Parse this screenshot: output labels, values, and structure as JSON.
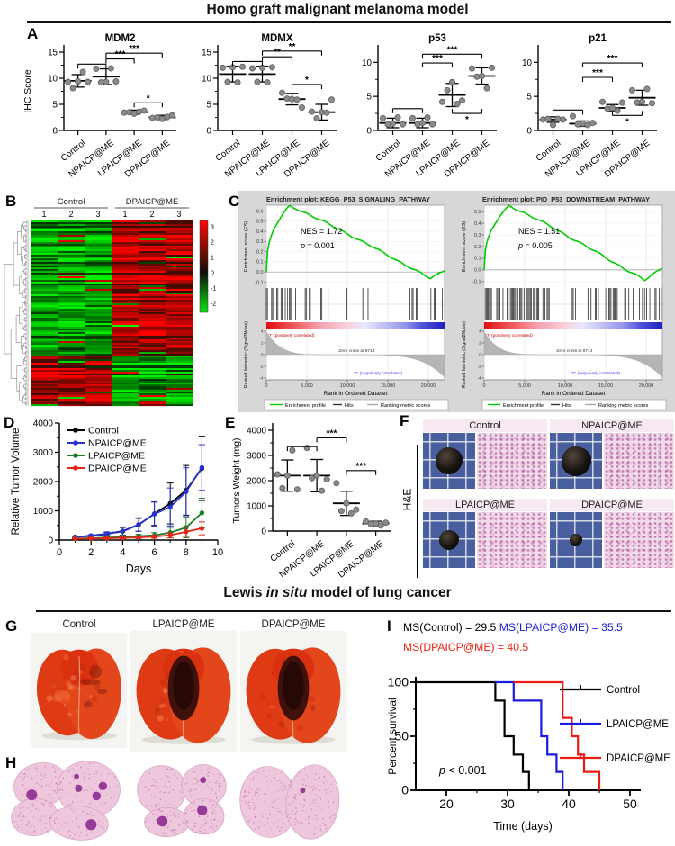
{
  "titles": {
    "top": "Homo graft malignant melanoma model",
    "bottom_pre": "Lewis",
    "bottom_italic": " in situ ",
    "bottom_post": "model of lung cancer"
  },
  "panels": {
    "a": "A",
    "b": "B",
    "c": "C",
    "d": "D",
    "e": "E",
    "f": "F",
    "g": "G",
    "h": "H",
    "i": "I"
  },
  "groups": [
    "Control",
    "NPAICP@ME",
    "LPAICP@ME",
    "DPAICP@ME"
  ],
  "colors": {
    "control_black": "#000000",
    "npaicp_blue": "#2633cf",
    "lpaicp_green": "#1e7d23",
    "dpaicp_red": "#e22718",
    "scatter_point_gray": "#8a8a8a",
    "heatmap_red": "#ee1111",
    "heatmap_green": "#11dd11",
    "gsea_curve_green": "#00cc00",
    "survival_blue": "#1a1ae0",
    "survival_red": "#ea1c12",
    "ms_blue_text": "#2222dd",
    "ms_red_text": "#e82412"
  },
  "panel_f": {
    "side_label": "H&E",
    "cells": [
      {
        "label": "Control",
        "tumor_size": 30
      },
      {
        "label": "NPAICP@ME",
        "tumor_size": 33
      },
      {
        "label": "LPAICP@ME",
        "tumor_size": 22
      },
      {
        "label": "DPAICP@ME",
        "tumor_size": 14
      }
    ]
  },
  "panel_g": {
    "labels": [
      "Control",
      "LPAICP@ME",
      "DPAICP@ME"
    ]
  },
  "survival_header": {
    "ms_control": "MS(Control) = 29.5",
    "ms_lpaicp": "MS(LPAICP@ME) = 35.5",
    "ms_dpaicp": "MS(DPAICP@ME) = 40.5"
  },
  "chart_data": [
    {
      "id": "ihc_mdm2",
      "type": "scatter",
      "title": "MDM2",
      "ylabel": "IHC Score",
      "ylim": [
        0,
        15
      ],
      "yticks": [
        0,
        5,
        10,
        15
      ],
      "categories": [
        "Control",
        "NPAICP@ME",
        "LPAICP@ME",
        "DPAICP@ME"
      ],
      "values": [
        [
          9.3,
          8.1,
          9.4,
          11.2,
          9.3
        ],
        [
          11.8,
          9.2,
          9.3,
          11.9,
          9.4
        ],
        [
          3.4,
          3.5,
          3.2,
          3.6,
          3.8
        ],
        [
          2.4,
          2.5,
          2.2,
          2.6,
          2.9
        ]
      ],
      "means": [
        9.5,
        10.3,
        3.5,
        2.5
      ],
      "errs": [
        1.2,
        1.5,
        0.4,
        0.4
      ],
      "brackets": [
        {
          "a": 0,
          "b": 1,
          "y": 12.7,
          "label": ""
        },
        {
          "a": 1,
          "b": 2,
          "y": 13.7,
          "label": "***"
        },
        {
          "a": 1,
          "b": 3,
          "y": 14.8,
          "label": "***"
        },
        {
          "a": 2,
          "b": 3,
          "y": 5.3,
          "label": "*"
        }
      ]
    },
    {
      "id": "ihc_mdmx",
      "type": "scatter",
      "title": "MDMX",
      "ylim": [
        0,
        15
      ],
      "yticks": [
        0,
        5,
        10,
        15
      ],
      "categories": [
        "Control",
        "NPAICP@ME",
        "LPAICP@ME",
        "DPAICP@ME"
      ],
      "values": [
        [
          12,
          9.3,
          12.1,
          9.2,
          12.2
        ],
        [
          11.9,
          9.3,
          12,
          9.2,
          12.1
        ],
        [
          7.2,
          6.1,
          6,
          5.9,
          4.4
        ],
        [
          3.6,
          2.3,
          3.5,
          3.4,
          5.9
        ]
      ],
      "means": [
        10.8,
        10.8,
        6,
        3.5
      ],
      "errs": [
        1.5,
        1.5,
        1.1,
        1.5
      ],
      "brackets": [
        {
          "a": 0,
          "b": 1,
          "y": 13.2,
          "label": ""
        },
        {
          "a": 1,
          "b": 2,
          "y": 14.1,
          "label": "**"
        },
        {
          "a": 1,
          "b": 3,
          "y": 15.2,
          "label": "**"
        },
        {
          "a": 2,
          "b": 3,
          "y": 8.8,
          "label": "*"
        }
      ]
    },
    {
      "id": "ihc_p53",
      "type": "scatter",
      "title": "p53",
      "ylim": [
        0,
        11.5
      ],
      "yticks": [
        0,
        5,
        10
      ],
      "categories": [
        "Control",
        "NPAICP@ME",
        "LPAICP@ME",
        "DPAICP@ME"
      ],
      "values": [
        [
          1.8,
          0.9,
          1,
          1.9,
          0.9
        ],
        [
          1.8,
          0.9,
          1.1,
          1.9,
          0.9
        ],
        [
          4.2,
          5.9,
          7.1,
          3.9,
          4.4
        ],
        [
          9.1,
          7.9,
          8,
          6.2,
          9.2
        ]
      ],
      "means": [
        1.1,
        1.1,
        5.2,
        8
      ],
      "errs": [
        0.7,
        0.7,
        1.7,
        1.2
      ],
      "brackets": [
        {
          "a": 0,
          "b": 1,
          "y": 3.2,
          "label": ""
        },
        {
          "a": 1,
          "b": 2,
          "y": 9.9,
          "label": "***"
        },
        {
          "a": 1,
          "b": 3,
          "y": 11.2,
          "label": "***"
        },
        {
          "a": 2,
          "b": 3,
          "y": 2.5,
          "label": "*",
          "below": true
        }
      ]
    },
    {
      "id": "ihc_p21",
      "type": "scatter",
      "title": "p21",
      "ylim": [
        0,
        11.5
      ],
      "yticks": [
        0,
        5,
        10
      ],
      "categories": [
        "Control",
        "NPAICP@ME",
        "LPAICP@ME",
        "DPAICP@ME"
      ],
      "values": [
        [
          1.6,
          1.7,
          0.8,
          1.7,
          1.6
        ],
        [
          2.1,
          0.9,
          1,
          0.8,
          1.1
        ],
        [
          4.2,
          3.2,
          3.3,
          2.9,
          4.1
        ],
        [
          5.9,
          4.1,
          4.2,
          6.1,
          4
        ]
      ],
      "means": [
        1.6,
        1,
        3.3,
        4.8
      ],
      "errs": [
        0.4,
        0.4,
        0.5,
        1.1
      ],
      "brackets": [
        {
          "a": 0,
          "b": 1,
          "y": 3,
          "label": ""
        },
        {
          "a": 1,
          "b": 2,
          "y": 7.8,
          "label": "***"
        },
        {
          "a": 1,
          "b": 3,
          "y": 9.9,
          "label": "***"
        },
        {
          "a": 2,
          "b": 3,
          "y": 2.2,
          "label": "*",
          "below": true
        }
      ]
    },
    {
      "id": "tumor_volume",
      "type": "line",
      "xlabel": "Days",
      "ylabel": "Relative Tumor Volume",
      "xlim": [
        0,
        10
      ],
      "xticks": [
        0,
        2,
        4,
        6,
        8,
        10
      ],
      "ylim": [
        0,
        4000
      ],
      "yticks": [
        0,
        1000,
        2000,
        3000,
        4000
      ],
      "x": [
        1,
        2,
        3,
        4,
        5,
        6,
        7,
        8,
        9
      ],
      "series": [
        {
          "name": "Control",
          "color": "#000000",
          "values": [
            110,
            140,
            210,
            300,
            520,
            900,
            1250,
            1700,
            2450
          ],
          "errors": [
            25,
            35,
            60,
            130,
            220,
            400,
            700,
            850,
            1100
          ]
        },
        {
          "name": "NPAICP@ME",
          "color": "#2633cf",
          "values": [
            105,
            150,
            220,
            310,
            530,
            890,
            1130,
            1650,
            2480
          ],
          "errors": [
            25,
            35,
            60,
            140,
            230,
            420,
            650,
            820,
            780
          ]
        },
        {
          "name": "LPAICP@ME",
          "color": "#1e7d23",
          "values": [
            55,
            65,
            85,
            105,
            135,
            165,
            255,
            430,
            930
          ],
          "errors": [
            15,
            20,
            30,
            40,
            60,
            90,
            180,
            350,
            500
          ]
        },
        {
          "name": "DPAICP@ME",
          "color": "#e22718",
          "values": [
            45,
            55,
            62,
            72,
            88,
            115,
            165,
            285,
            400
          ],
          "errors": [
            12,
            15,
            20,
            25,
            35,
            50,
            90,
            160,
            220
          ]
        }
      ]
    },
    {
      "id": "tumor_weight",
      "type": "scatter",
      "ylabel": "Tumors Weight (mg)",
      "ylim": [
        0,
        4000
      ],
      "yticks": [
        0,
        1000,
        2000,
        3000,
        4000
      ],
      "categories": [
        "Control",
        "NPAICP@ME",
        "LPAICP@ME",
        "DPAICP@ME"
      ],
      "values": [
        [
          2250,
          1700,
          2200,
          3200,
          1650
        ],
        [
          3300,
          2100,
          2200,
          1600,
          2050
        ],
        [
          1900,
          800,
          1100,
          700,
          850
        ],
        [
          380,
          280,
          300,
          220,
          330
        ]
      ],
      "means": [
        2200,
        2200,
        1100,
        300
      ],
      "errs": [
        620,
        640,
        480,
        90
      ],
      "brackets": [
        {
          "a": 0,
          "b": 1,
          "y": 3350,
          "label": ""
        },
        {
          "a": 1,
          "b": 2,
          "y": 3700,
          "label": "***"
        },
        {
          "a": 2,
          "b": 3,
          "y": 2400,
          "label": "***"
        }
      ]
    },
    {
      "id": "heatmap",
      "type": "heatmap",
      "col_groups": [
        "Control",
        "DPAICP@ME"
      ],
      "col_numbers": [
        "1",
        "2",
        "3",
        "1",
        "2",
        "3"
      ],
      "colorbar_ticks": [
        3,
        2,
        1,
        0,
        -1,
        -2
      ],
      "value_scale": [
        -2.6,
        3.4
      ],
      "rows": 103,
      "upregulated_in_treatment_fraction": 0.72
    },
    {
      "id": "gsea_kegg",
      "type": "gsea",
      "title": "Enrichment plot: KEGG_P53_SIGNALING_PATHWAY",
      "nes": "NES = 1.72",
      "p_italic": "p",
      "p_rest": " = 0.001",
      "es_yticks": [
        0.6,
        0.5,
        0.4,
        0.3,
        0.2,
        0.1,
        0.0,
        -0.1
      ],
      "es_peak": 0.65,
      "peak_pos": 0.13,
      "es_dip": -0.065,
      "dip_pos": 0.92,
      "ylabel_top": "Enrichment score (ES)",
      "ylabel_bottom": "Ranked list metric (Signal2Noise)",
      "metric_yticks": [
        4,
        2,
        0,
        -2,
        -4
      ],
      "zero_cross": "Zero cross at 8714",
      "zero_cross_pos": 0.396,
      "x_max": 22000,
      "pos_label": "'T' (positively correlated)",
      "neg_label": "'D' (negatively correlated)",
      "xlabel": "Rank in Ordered Dataset",
      "xticks": [
        "0",
        "5,000",
        "10,000",
        "15,000",
        "20,000"
      ],
      "legend": [
        "Enrichment profile",
        "Hits",
        "Ranking metric scores"
      ],
      "hit_bands": [
        [
          0,
          0.14,
          0.5
        ],
        [
          0.14,
          0.34,
          0.18
        ],
        [
          0.34,
          0.6,
          0.05
        ],
        [
          0.6,
          0.82,
          0.13
        ],
        [
          0.82,
          1,
          0.33
        ]
      ],
      "seed": 7
    },
    {
      "id": "gsea_pid",
      "type": "gsea",
      "title": "Enrichment plot: PID_P53_DOWNSTREAM_PATHWAY",
      "nes": "NES = 1.51",
      "p_italic": "p",
      "p_rest": " = 0.005",
      "es_yticks": [
        0.5,
        0.4,
        0.3,
        0.2,
        0.1,
        0.0,
        -0.1
      ],
      "es_peak": 0.55,
      "peak_pos": 0.14,
      "es_dip": -0.09,
      "dip_pos": 0.9,
      "ylabel_top": "Enrichment score (ES)",
      "ylabel_bottom": "Ranked list metric (Signal2Noise)",
      "metric_yticks": [
        4,
        2,
        0,
        -2,
        -4
      ],
      "zero_cross": "Zero cross at 8714",
      "zero_cross_pos": 0.396,
      "x_max": 22000,
      "pos_label": "'T' (positively correlated)",
      "neg_label": "'D' (negatively correlated)",
      "xlabel": "Rank in Ordered Dataset",
      "xticks": [
        "0",
        "5,000",
        "10,000",
        "15,000",
        "20,000"
      ],
      "legend": [
        "Enrichment profile",
        "Hits",
        "Ranking metric scores"
      ],
      "hit_bands": [
        [
          0,
          0.38,
          0.42
        ],
        [
          0.38,
          0.58,
          0.12
        ],
        [
          0.58,
          1,
          0.38
        ]
      ],
      "seed": 13
    },
    {
      "id": "survival",
      "type": "survival",
      "p_italic": "p",
      "p_rest": " < 0.001",
      "xlabel": "Time (days)",
      "ylabel": "Percent survival",
      "xlim": [
        15,
        50
      ],
      "xticks": [
        20,
        30,
        40,
        50
      ],
      "ylim": [
        0,
        100
      ],
      "yticks": [
        0,
        50,
        100
      ],
      "median_survival": {
        "Control": 29.5,
        "LPAICP@ME": 35.5,
        "DPAICP@ME": 40.5
      },
      "series": [
        {
          "name": "Control",
          "color": "#000000",
          "start": 15,
          "drops": [
            [
              28,
              83
            ],
            [
              29.5,
              50
            ],
            [
              31,
              33
            ],
            [
              32.5,
              17
            ],
            [
              33.5,
              0
            ]
          ]
        },
        {
          "name": "LPAICP@ME",
          "color": "#1a1ae0",
          "start": 28,
          "drops": [
            [
              31,
              83
            ],
            [
              35.5,
              50
            ],
            [
              36.5,
              33
            ],
            [
              38,
              17
            ],
            [
              39,
              0
            ]
          ]
        },
        {
          "name": "DPAICP@ME",
          "color": "#ea1c12",
          "start": 31,
          "drops": [
            [
              39,
              67
            ],
            [
              40.5,
              50
            ],
            [
              41.5,
              33
            ],
            [
              42.5,
              17
            ],
            [
              45,
              0
            ]
          ]
        }
      ]
    }
  ]
}
